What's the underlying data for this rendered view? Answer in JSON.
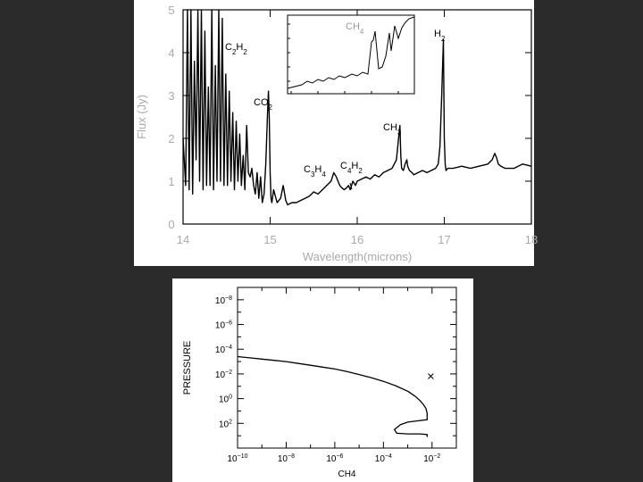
{
  "chart_data": [
    {
      "type": "line",
      "xlabel": "Wavelength(microns)",
      "ylabel": "Flux (Jy)",
      "xlim": [
        14,
        18
      ],
      "ylim": [
        0,
        5
      ],
      "x_ticks": [
        "14",
        "15",
        "16",
        "17",
        "18"
      ],
      "y_ticks": [
        "0",
        "1",
        "2",
        "3",
        "4",
        "5"
      ],
      "series": [
        {
          "x": [
            14.0,
            14.03,
            14.05,
            14.07,
            14.09,
            14.11,
            14.13,
            14.15,
            14.17,
            14.19,
            14.21,
            14.23,
            14.25,
            14.27,
            14.29,
            14.31,
            14.33,
            14.35,
            14.37,
            14.39,
            14.41,
            14.43,
            14.45,
            14.47,
            14.49,
            14.51,
            14.53,
            14.55,
            14.57,
            14.59,
            14.61,
            14.63,
            14.65,
            14.67,
            14.69,
            14.71,
            14.73,
            14.75,
            14.77,
            14.79,
            14.81,
            14.83,
            14.85,
            14.87,
            14.89,
            14.91,
            14.93,
            14.95,
            14.97,
            14.98,
            14.99,
            15.0,
            15.01,
            15.02,
            15.04,
            15.08,
            15.12,
            15.15,
            15.18,
            15.2,
            15.25,
            15.3,
            15.35,
            15.4,
            15.45,
            15.5,
            15.55,
            15.6,
            15.65,
            15.7,
            15.73,
            15.76,
            15.78,
            15.8,
            15.82,
            15.85,
            15.88,
            15.9,
            15.92,
            15.95,
            15.98,
            16.0,
            16.05,
            16.1,
            16.15,
            16.2,
            16.25,
            16.3,
            16.35,
            16.4,
            16.45,
            16.47,
            16.49,
            16.5,
            16.51,
            16.53,
            16.55,
            16.57,
            16.58,
            16.6,
            16.63,
            16.65,
            16.7,
            16.75,
            16.8,
            16.85,
            16.9,
            16.93,
            16.95,
            16.97,
            16.99,
            17.0,
            17.01,
            17.02,
            17.04,
            17.1,
            17.2,
            17.3,
            17.4,
            17.5,
            17.55,
            17.58,
            17.6,
            17.62,
            17.65,
            17.7,
            17.8,
            17.9,
            18.0
          ],
          "y": [
            2.0,
            0.9,
            5.0,
            0.8,
            5.0,
            0.7,
            3.8,
            1.5,
            5.0,
            1.0,
            5.0,
            0.8,
            4.5,
            0.9,
            3.2,
            0.9,
            5.0,
            0.8,
            3.7,
            1.0,
            5.0,
            1.0,
            4.8,
            0.9,
            3.5,
            0.9,
            3.1,
            1.0,
            2.6,
            0.8,
            2.4,
            1.0,
            2.1,
            0.9,
            1.6,
            0.8,
            2.3,
            1.2,
            1.1,
            1.3,
            0.9,
            0.7,
            1.2,
            0.6,
            1.1,
            0.5,
            0.7,
            1.4,
            2.6,
            3.1,
            2.5,
            1.2,
            0.6,
            0.5,
            0.8,
            0.5,
            0.6,
            0.9,
            0.55,
            0.45,
            0.5,
            0.5,
            0.55,
            0.6,
            0.65,
            0.75,
            0.7,
            0.8,
            0.9,
            1.0,
            1.2,
            1.1,
            1.0,
            0.9,
            0.85,
            0.8,
            0.85,
            0.9,
            0.8,
            1.0,
            0.9,
            1.0,
            1.05,
            1.1,
            1.05,
            1.15,
            1.1,
            1.2,
            1.25,
            1.3,
            1.5,
            1.9,
            2.3,
            1.6,
            1.3,
            1.25,
            1.4,
            1.5,
            1.35,
            1.25,
            1.2,
            1.15,
            1.2,
            1.25,
            1.2,
            1.25,
            1.3,
            1.4,
            1.8,
            3.0,
            4.3,
            2.0,
            1.4,
            1.25,
            1.3,
            1.3,
            1.35,
            1.3,
            1.35,
            1.4,
            1.5,
            1.65,
            1.55,
            1.4,
            1.35,
            1.3,
            1.3,
            1.4,
            1.35
          ]
        }
      ],
      "annotations": [
        "C₂H₂",
        "CO₂",
        "C₃H₄",
        "C₄H₂",
        "CH₃",
        "H₂",
        "CH₄"
      ]
    },
    {
      "type": "line",
      "xlabel": "CH4",
      "ylabel": "PRESSURE",
      "x_scale": "log",
      "y_scale": "log",
      "y_inverted": true,
      "xlim_exp": [
        -10,
        -1
      ],
      "ylim_exp": [
        -9,
        4
      ],
      "x_tick_exps": [
        -10,
        -8,
        -6,
        -4,
        -2
      ],
      "y_tick_exps": [
        -8,
        -6,
        -4,
        -2,
        0,
        2
      ],
      "series": [
        {
          "log_x": [
            -10.0,
            -9.5,
            -9.0,
            -8.5,
            -8.0,
            -7.5,
            -7.0,
            -6.5,
            -6.0,
            -5.5,
            -5.0,
            -4.5,
            -4.0,
            -3.5,
            -3.0,
            -2.7,
            -2.5,
            -2.35,
            -2.25,
            -2.2,
            -2.2,
            -2.2,
            -2.6,
            -3.0,
            -3.3,
            -3.55,
            -3.45,
            -3.0,
            -2.5,
            -2.2,
            -2.2
          ],
          "log_y": [
            -3.4,
            -3.3,
            -3.2,
            -3.1,
            -3.0,
            -2.85,
            -2.7,
            -2.55,
            -2.4,
            -2.2,
            -1.95,
            -1.7,
            -1.4,
            -1.05,
            -0.6,
            -0.2,
            0.15,
            0.5,
            0.8,
            1.2,
            1.6,
            1.7,
            1.8,
            1.9,
            2.1,
            2.5,
            2.8,
            2.85,
            2.85,
            2.9,
            3.1
          ]
        }
      ],
      "marker": {
        "symbol": "×",
        "log_x": -2.05,
        "log_y": -1.8
      }
    }
  ]
}
